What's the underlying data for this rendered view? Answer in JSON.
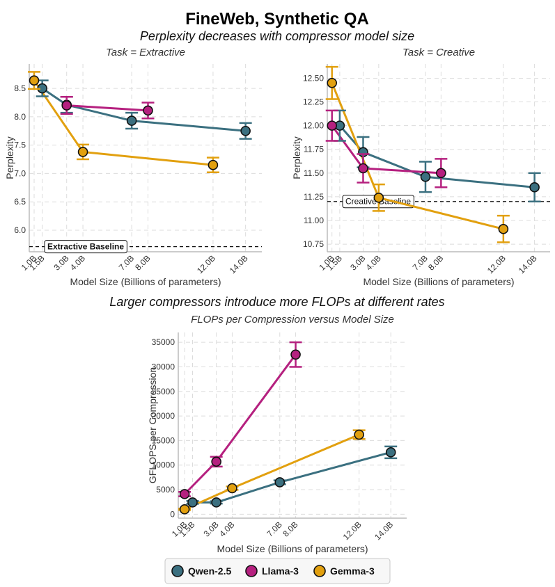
{
  "figure": {
    "title": "FineWeb, Synthetic QA",
    "subtitle_top": "Perplexity decreases with compressor model size",
    "subtitle_bottom": "Larger compressors introduce more FLOPs at different rates"
  },
  "colors": {
    "Qwen-2.5": "#3b7080",
    "Llama-3": "#b5207f",
    "Gemma-3": "#e2a00f"
  },
  "legend": {
    "placement": "bottom-center",
    "entries": [
      "Qwen-2.5",
      "Llama-3",
      "Gemma-3"
    ]
  },
  "chart_data": [
    {
      "type": "line",
      "title": "Task = Extractive",
      "xlabel": "Model Size (Billions of parameters)",
      "ylabel": "Perplexity",
      "xlim": [
        0.7,
        15.0
      ],
      "ylim": [
        5.62,
        8.93
      ],
      "grid": true,
      "x_ticks": [
        1.0,
        1.5,
        3.0,
        4.0,
        7.0,
        8.0,
        12.0,
        14.0
      ],
      "x_tick_labels": [
        "1.0B",
        "1.5B",
        "3.0B",
        "4.0B",
        "7.0B",
        "8.0B",
        "12.0B",
        "14.0B"
      ],
      "y_ticks": [
        6.0,
        6.5,
        7.0,
        7.5,
        8.0,
        8.5
      ],
      "y_tick_labels": [
        "6.0",
        "6.5",
        "7.0",
        "7.5",
        "8.0",
        "8.5"
      ],
      "baseline": {
        "label": "Extractive Baseline",
        "value": 5.71
      },
      "series": [
        {
          "name": "Qwen-2.5",
          "x": [
            1.5,
            3.0,
            7.0,
            14.0
          ],
          "y": [
            8.5,
            8.21,
            7.93,
            7.75
          ],
          "err": [
            0.14,
            0.14,
            0.14,
            0.14
          ]
        },
        {
          "name": "Llama-3",
          "x": [
            3.0,
            8.0
          ],
          "y": [
            8.2,
            8.11
          ],
          "err": [
            0.15,
            0.14
          ]
        },
        {
          "name": "Gemma-3",
          "x": [
            1.0,
            4.0,
            12.0
          ],
          "y": [
            8.64,
            7.38,
            7.15
          ],
          "err": [
            0.15,
            0.13,
            0.13
          ]
        }
      ]
    },
    {
      "type": "line",
      "title": "Task = Creative",
      "xlabel": "Model Size (Billions of parameters)",
      "ylabel": "Perplexity",
      "xlim": [
        0.7,
        15.0
      ],
      "ylim": [
        10.67,
        12.65
      ],
      "grid": true,
      "x_ticks": [
        1.0,
        1.5,
        3.0,
        4.0,
        7.0,
        8.0,
        12.0,
        14.0
      ],
      "x_tick_labels": [
        "1.0B",
        "1.5B",
        "3.0B",
        "4.0B",
        "7.0B",
        "8.0B",
        "12.0B",
        "14.0B"
      ],
      "y_ticks": [
        10.75,
        11.0,
        11.25,
        11.5,
        11.75,
        12.0,
        12.25,
        12.5
      ],
      "y_tick_labels": [
        "10.75",
        "11.00",
        "11.25",
        "11.50",
        "11.75",
        "12.00",
        "12.25",
        "12.50"
      ],
      "baseline": {
        "label": "Creative Baseline",
        "value": 11.2
      },
      "series": [
        {
          "name": "Qwen-2.5",
          "x": [
            1.5,
            3.0,
            7.0,
            14.0
          ],
          "y": [
            12.0,
            11.72,
            11.46,
            11.35
          ],
          "err": [
            0.16,
            0.16,
            0.16,
            0.15
          ]
        },
        {
          "name": "Llama-3",
          "x": [
            1.0,
            3.0,
            8.0
          ],
          "y": [
            12.0,
            11.55,
            11.5
          ],
          "err": [
            0.16,
            0.15,
            0.15
          ]
        },
        {
          "name": "Gemma-3",
          "x": [
            1.0,
            4.0,
            12.0
          ],
          "y": [
            12.45,
            11.24,
            10.91
          ],
          "err": [
            0.17,
            0.14,
            0.14
          ]
        }
      ]
    },
    {
      "type": "line",
      "title": "FLOPs per Compression versus Model Size",
      "xlabel": "Model Size (Billions of parameters)",
      "ylabel": "GFLOPS per Compression",
      "xlim": [
        0.6,
        15.0
      ],
      "ylim": [
        -800,
        37000
      ],
      "grid": true,
      "x_ticks": [
        1.0,
        1.5,
        3.0,
        4.0,
        7.0,
        8.0,
        12.0,
        14.0
      ],
      "x_tick_labels": [
        "1.0B",
        "1.5B",
        "3.0B",
        "4.0B",
        "7.0B",
        "8.0B",
        "12.0B",
        "14.0B"
      ],
      "y_ticks": [
        0,
        5000,
        10000,
        15000,
        20000,
        25000,
        30000,
        35000
      ],
      "y_tick_labels": [
        "0",
        "5000",
        "10000",
        "15000",
        "20000",
        "25000",
        "30000",
        "35000"
      ],
      "series": [
        {
          "name": "Qwen-2.5",
          "x": [
            1.5,
            3.0,
            7.0,
            14.0
          ],
          "y": [
            2400,
            2400,
            6500,
            12600
          ],
          "err": [
            300,
            250,
            400,
            1200
          ]
        },
        {
          "name": "Llama-3",
          "x": [
            1.0,
            3.0,
            8.0
          ],
          "y": [
            4100,
            10700,
            32500
          ],
          "err": [
            450,
            1000,
            2500
          ]
        },
        {
          "name": "Gemma-3",
          "x": [
            1.0,
            4.0,
            12.0
          ],
          "y": [
            1000,
            5300,
            16200
          ],
          "err": [
            150,
            350,
            900
          ]
        }
      ]
    }
  ]
}
